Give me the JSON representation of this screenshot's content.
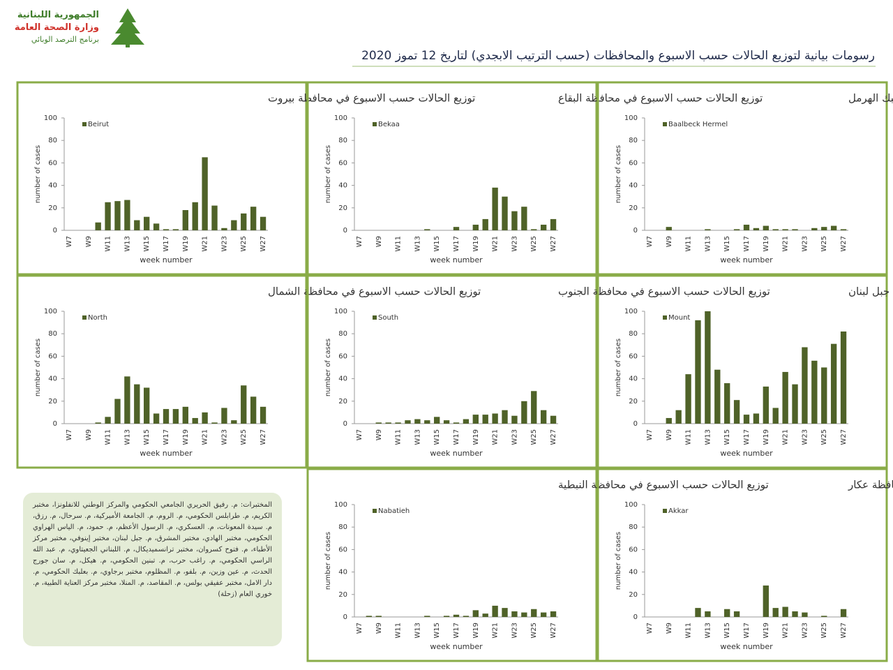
{
  "header": {
    "country": "الجمهورية اللبنانية",
    "ministry": "وزارة الصحة العامة",
    "program": "برنامج الترصد الوبائي",
    "title": "رسومات بيانية لتوزيع الحالات حسب الاسبوع  والمحافظات (حسب الترتيب الابجدي) لتاريخ  12 تموز 2020"
  },
  "note": "المختبرات: م. رفيق الحريري الجامعي الحكومي والمركز الوطني للانفلونزا، مختبر الكريم، م. طرابلس الحكومي، م. الروم، م. الجامعة الأميركية، م. سرحال، م. رزق، م. سيدة المعونات، م. العسكري، م. الرسول الأعظم، م. حمود، م. الياس الهراوي الحكومي، مختبر الهادي، مختبر المشرق، م. جبل لبنان، مختبر إينوفي، مختبر مركز الأطباء، م. فتوح كسروان، مختبر ترانسميديكال، م. اللبناني الجعيتاوي، م. عبد الله الراسي الحكومي، م. راغب حرب، م. تبنين الحكومي، م. هيكل، م. سان جورج الحدث، م. عين وزين، م. بلفو، م. المظلوم، مختبر برجاوي، م. بعلبك الحكومي، م. دار الامل، مختبر عفيقي بولس، م. المقاصد، م. المنلا، مختبر مركز العناية الطبية، م. خوري العام (زحلة)",
  "chart_data": [
    {
      "type": "bar",
      "title": "توزيع الحالات حسب الاسبوع  في محافظة بيروت",
      "ylabel": "number of cases",
      "xlabel": "week number",
      "categories": [
        "W7",
        null,
        "W9",
        null,
        "W11",
        null,
        "W13",
        null,
        "W15",
        null,
        "W17",
        null,
        "W19",
        null,
        "W21",
        null,
        "W23",
        null,
        "W25",
        null,
        "W27"
      ],
      "ylim": [
        0,
        100
      ],
      "yticks": [
        0,
        20,
        40,
        60,
        80,
        100
      ],
      "series": [
        {
          "name": "Beirut",
          "color": "#4f6228",
          "values": [
            0,
            0,
            0,
            7,
            25,
            26,
            27,
            9,
            12,
            6,
            1,
            1,
            18,
            25,
            65,
            22,
            2,
            9,
            15,
            21,
            12
          ]
        }
      ]
    },
    {
      "type": "bar",
      "title": "توزيع الحالات حسب الاسبوع  في محافظة البقاع",
      "ylabel": "number of cases",
      "xlabel": "week number",
      "categories": [
        "W7",
        null,
        "W9",
        null,
        "W11",
        null,
        "W13",
        null,
        "W15",
        null,
        "W17",
        null,
        "W19",
        null,
        "W21",
        null,
        "W23",
        null,
        "W25",
        null,
        "W27"
      ],
      "ylim": [
        0,
        100
      ],
      "yticks": [
        0,
        20,
        40,
        60,
        80,
        100
      ],
      "series": [
        {
          "name": "Bekaa",
          "color": "#4f6228",
          "values": [
            0,
            0,
            0,
            0,
            0,
            0,
            0,
            1,
            0,
            0,
            3,
            0,
            5,
            10,
            38,
            30,
            17,
            21,
            1,
            5,
            10
          ]
        }
      ]
    },
    {
      "type": "bar",
      "title": "توزيع الحالات حسب الاسبوع  في محافظة بعلبك الهرمل",
      "ylabel": "number of cases",
      "xlabel": "week number",
      "categories": [
        "W7",
        null,
        "W9",
        null,
        "W11",
        null,
        "W13",
        null,
        "W15",
        null,
        "W17",
        null,
        "W19",
        null,
        "W21",
        null,
        "W23",
        null,
        "W25",
        null,
        "W27"
      ],
      "ylim": [
        0,
        100
      ],
      "yticks": [
        0,
        20,
        40,
        60,
        80,
        100
      ],
      "series": [
        {
          "name": "Baalbeck Hermel",
          "color": "#4f6228",
          "values": [
            0,
            0,
            3,
            0,
            0,
            0,
            1,
            0,
            0,
            1,
            5,
            2,
            4,
            1,
            1,
            1,
            0,
            2,
            3,
            4,
            1
          ]
        }
      ]
    },
    {
      "type": "bar",
      "title": "توزيع الحالات حسب الاسبوع  في محافظة الشمال",
      "ylabel": "number of cases",
      "xlabel": "week number",
      "categories": [
        "W7",
        null,
        "W9",
        null,
        "W11",
        null,
        "W13",
        null,
        "W15",
        null,
        "W17",
        null,
        "W19",
        null,
        "W21",
        null,
        "W23",
        null,
        "W25",
        null,
        "W27"
      ],
      "ylim": [
        0,
        100
      ],
      "yticks": [
        0,
        20,
        40,
        60,
        80,
        100
      ],
      "series": [
        {
          "name": "North",
          "color": "#4f6228",
          "values": [
            0,
            0,
            0,
            1,
            6,
            22,
            42,
            35,
            32,
            9,
            13,
            13,
            15,
            5,
            10,
            1,
            14,
            3,
            34,
            24,
            15
          ]
        }
      ]
    },
    {
      "type": "bar",
      "title": "توزيع الحالات حسب الاسبوع  في محافظة الجنوب",
      "ylabel": "number of cases",
      "xlabel": "week number",
      "categories": [
        "W7",
        null,
        "W9",
        null,
        "W11",
        null,
        "W13",
        null,
        "W15",
        null,
        "W17",
        null,
        "W19",
        null,
        "W21",
        null,
        "W23",
        null,
        "W25",
        null,
        "W27"
      ],
      "ylim": [
        0,
        100
      ],
      "yticks": [
        0,
        20,
        40,
        60,
        80,
        100
      ],
      "series": [
        {
          "name": "South",
          "color": "#4f6228",
          "values": [
            0,
            0,
            1,
            1,
            1,
            3,
            4,
            3,
            6,
            3,
            1,
            4,
            8,
            8,
            9,
            12,
            7,
            20,
            29,
            12,
            7
          ]
        }
      ]
    },
    {
      "type": "bar",
      "title": "توزيع الحالات حسب الاسبوع  في محافظة جبل لبنان",
      "ylabel": "number of cases",
      "xlabel": "week number",
      "categories": [
        "W7",
        null,
        "W9",
        null,
        "W11",
        null,
        "W13",
        null,
        "W15",
        null,
        "W17",
        null,
        "W19",
        null,
        "W21",
        null,
        "W23",
        null,
        "W25",
        null,
        "W27"
      ],
      "ylim": [
        0,
        100
      ],
      "yticks": [
        0,
        20,
        40,
        60,
        80,
        100
      ],
      "series": [
        {
          "name": "Mount",
          "color": "#4f6228",
          "values": [
            0,
            0,
            5,
            12,
            44,
            92,
            100,
            48,
            36,
            21,
            8,
            9,
            33,
            14,
            46,
            35,
            68,
            56,
            50,
            71,
            82
          ]
        }
      ]
    },
    {
      "type": "bar",
      "title": "توزيع الحالات حسب الاسبوع  في محافظة النبطية",
      "ylabel": "number of cases",
      "xlabel": "week number",
      "categories": [
        "W7",
        null,
        "W9",
        null,
        "W11",
        null,
        "W13",
        null,
        "W15",
        null,
        "W17",
        null,
        "W19",
        null,
        "W21",
        null,
        "W23",
        null,
        "W25",
        null,
        "W27"
      ],
      "ylim": [
        0,
        100
      ],
      "yticks": [
        0,
        20,
        40,
        60,
        80,
        100
      ],
      "series": [
        {
          "name": "Nabatieh",
          "color": "#4f6228",
          "values": [
            0,
            1,
            1,
            0,
            0,
            0,
            0,
            1,
            0,
            1,
            2,
            1,
            6,
            3,
            10,
            8,
            5,
            4,
            7,
            4,
            5
          ]
        }
      ]
    },
    {
      "type": "bar",
      "title": "توزيع الحالات حسب  الاسبوع  في محافظة عكار",
      "ylabel": "number of cases",
      "xlabel": "week number",
      "categories": [
        "W7",
        null,
        "W9",
        null,
        "W11",
        null,
        "W13",
        null,
        "W15",
        null,
        "W17",
        null,
        "W19",
        null,
        "W21",
        null,
        "W23",
        null,
        "W25",
        null,
        "W27"
      ],
      "ylim": [
        0,
        100
      ],
      "yticks": [
        0,
        20,
        40,
        60,
        80,
        100
      ],
      "series": [
        {
          "name": "Akkar",
          "color": "#4f6228",
          "values": [
            0,
            0,
            0,
            0,
            0,
            8,
            5,
            0,
            7,
            5,
            0,
            0,
            28,
            8,
            9,
            5,
            4,
            0,
            1,
            0,
            7
          ]
        }
      ]
    }
  ]
}
